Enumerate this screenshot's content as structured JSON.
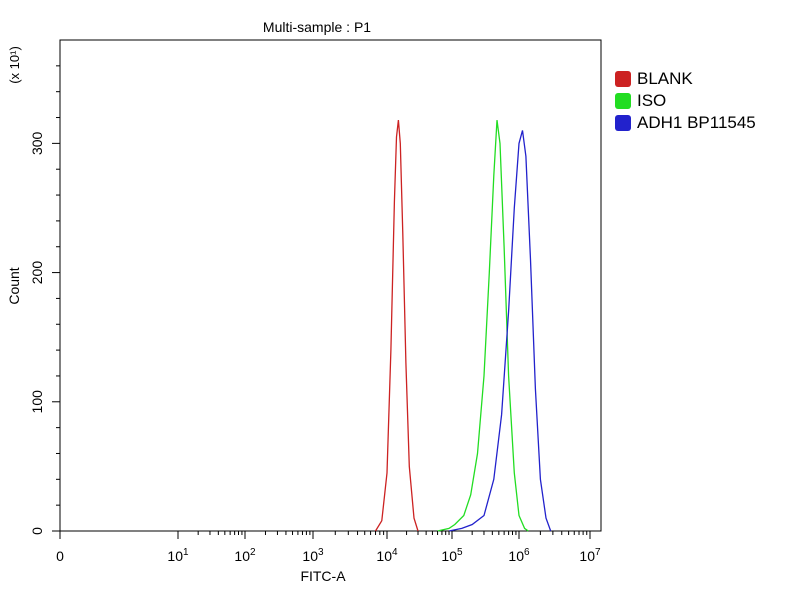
{
  "chart_data": {
    "type": "line",
    "title": "Multi-sample : P1",
    "xlabel": "FITC-A",
    "ylabel": "Count",
    "y_multiplier_label": "(x 10¹)",
    "x_scale": "log",
    "x_tick_labels": [
      {
        "value": 0,
        "label": "0"
      },
      {
        "value": 10,
        "base": "10",
        "exp": "1"
      },
      {
        "value": 100,
        "base": "10",
        "exp": "2"
      },
      {
        "value": 1000,
        "base": "10",
        "exp": "3"
      },
      {
        "value": 10000,
        "base": "10",
        "exp": "4"
      },
      {
        "value": 100000,
        "base": "10",
        "exp": "5"
      },
      {
        "value": 1000000,
        "base": "10",
        "exp": "6"
      },
      {
        "value": 10000000,
        "base": "10",
        "exp": "7"
      }
    ],
    "y_ticks": [
      0,
      100,
      200,
      300
    ],
    "ylim": [
      0,
      380
    ],
    "legend_position": "right",
    "series": [
      {
        "name": "BLANK",
        "color": "#cc2222",
        "points": [
          [
            7000,
            0
          ],
          [
            8500,
            8
          ],
          [
            10000,
            45
          ],
          [
            11500,
            140
          ],
          [
            13000,
            255
          ],
          [
            14000,
            305
          ],
          [
            15000,
            318
          ],
          [
            16000,
            300
          ],
          [
            17500,
            230
          ],
          [
            19500,
            130
          ],
          [
            22000,
            50
          ],
          [
            26000,
            10
          ],
          [
            30000,
            0
          ]
        ]
      },
      {
        "name": "ISO",
        "color": "#22dd22",
        "points": [
          [
            60000,
            0
          ],
          [
            90000,
            2
          ],
          [
            110000,
            5
          ],
          [
            150000,
            12
          ],
          [
            190000,
            28
          ],
          [
            240000,
            60
          ],
          [
            300000,
            120
          ],
          [
            360000,
            200
          ],
          [
            420000,
            275
          ],
          [
            470000,
            318
          ],
          [
            520000,
            300
          ],
          [
            600000,
            220
          ],
          [
            700000,
            120
          ],
          [
            850000,
            45
          ],
          [
            1000000,
            12
          ],
          [
            1200000,
            2
          ],
          [
            1350000,
            0
          ]
        ]
      },
      {
        "name": "ADH1 BP11545",
        "color": "#2222cc",
        "points": [
          [
            90000,
            0
          ],
          [
            140000,
            2
          ],
          [
            200000,
            5
          ],
          [
            300000,
            12
          ],
          [
            420000,
            40
          ],
          [
            550000,
            90
          ],
          [
            700000,
            170
          ],
          [
            850000,
            250
          ],
          [
            1000000,
            300
          ],
          [
            1120000,
            310
          ],
          [
            1250000,
            290
          ],
          [
            1450000,
            210
          ],
          [
            1700000,
            110
          ],
          [
            2000000,
            40
          ],
          [
            2400000,
            10
          ],
          [
            2800000,
            0
          ]
        ]
      }
    ]
  }
}
